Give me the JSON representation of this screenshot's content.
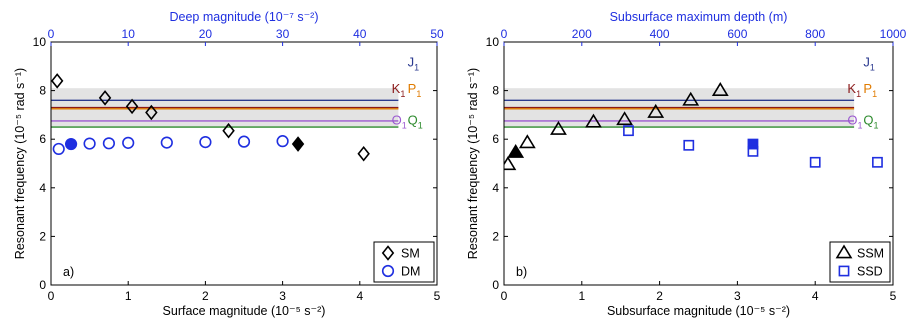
{
  "chart_data": [
    {
      "type": "scatter",
      "panel_label": "a)",
      "xlabel": "Surface magnitude (10⁻⁵ s⁻²)",
      "x2label": "Deep magnitude (10⁻⁷ s⁻²)",
      "ylabel": "Resonant frequency (10⁻⁵ rad s⁻¹)",
      "xlim": [
        0,
        5
      ],
      "x2lim": [
        0,
        50
      ],
      "ylim": [
        0,
        10
      ],
      "xticks": [
        "0",
        "1",
        "2",
        "3",
        "4",
        "5"
      ],
      "x2ticks": [
        "0",
        "10",
        "20",
        "30",
        "40",
        "50"
      ],
      "yticks": [
        "0",
        "2",
        "4",
        "6",
        "8",
        "10"
      ],
      "legend_position": "bottom-right",
      "shaded_band": [
        6.5,
        8.1
      ],
      "tidal_lines": [
        {
          "name": "J",
          "sub": "1",
          "y": 7.6,
          "color": "#2b3a8f"
        },
        {
          "name": "K",
          "sub": "1",
          "y": 7.3,
          "color": "#8b1a1a"
        },
        {
          "name": "P",
          "sub": "1",
          "y": 7.25,
          "color": "#e07b00"
        },
        {
          "name": "O",
          "sub": "1",
          "y": 6.75,
          "color": "#9b59d0"
        },
        {
          "name": "Q",
          "sub": "1",
          "y": 6.5,
          "color": "#2e8b2e"
        }
      ],
      "series": [
        {
          "name": "SM",
          "axis": "bottom",
          "marker": "diamond",
          "color": "#000000",
          "points": [
            {
              "x": 0.08,
              "y": 8.4,
              "filled": false
            },
            {
              "x": 0.7,
              "y": 7.7,
              "filled": false
            },
            {
              "x": 1.05,
              "y": 7.35,
              "filled": false
            },
            {
              "x": 1.3,
              "y": 7.1,
              "filled": false
            },
            {
              "x": 2.3,
              "y": 6.35,
              "filled": false
            },
            {
              "x": 3.2,
              "y": 5.8,
              "filled": true
            },
            {
              "x": 4.05,
              "y": 5.4,
              "filled": false
            }
          ]
        },
        {
          "name": "DM",
          "axis": "top",
          "marker": "circle",
          "color": "#1f2fe0",
          "points": [
            {
              "x": 1,
              "y": 5.6,
              "filled": false
            },
            {
              "x": 2.6,
              "y": 5.8,
              "filled": true
            },
            {
              "x": 5,
              "y": 5.82,
              "filled": false
            },
            {
              "x": 7.5,
              "y": 5.83,
              "filled": false
            },
            {
              "x": 10,
              "y": 5.85,
              "filled": false
            },
            {
              "x": 15,
              "y": 5.86,
              "filled": false
            },
            {
              "x": 20,
              "y": 5.88,
              "filled": false
            },
            {
              "x": 25,
              "y": 5.9,
              "filled": false
            },
            {
              "x": 30,
              "y": 5.92,
              "filled": false
            }
          ]
        }
      ]
    },
    {
      "type": "scatter",
      "panel_label": "b)",
      "xlabel": "Subsurface magnitude (10⁻⁵ s⁻²)",
      "x2label": "Subsurface maximum depth (m)",
      "ylabel": "Resonant frequency (10⁻⁵ rad s⁻¹)",
      "xlim": [
        0,
        5
      ],
      "x2lim": [
        0,
        1000
      ],
      "ylim": [
        0,
        10
      ],
      "xticks": [
        "0",
        "1",
        "2",
        "3",
        "4",
        "5"
      ],
      "x2ticks": [
        "0",
        "200",
        "400",
        "600",
        "800",
        "1000"
      ],
      "yticks": [
        "0",
        "2",
        "4",
        "6",
        "8",
        "10"
      ],
      "legend_position": "bottom-right",
      "shaded_band": [
        6.5,
        8.1
      ],
      "tidal_lines": [
        {
          "name": "J",
          "sub": "1",
          "y": 7.6,
          "color": "#2b3a8f"
        },
        {
          "name": "K",
          "sub": "1",
          "y": 7.3,
          "color": "#8b1a1a"
        },
        {
          "name": "P",
          "sub": "1",
          "y": 7.25,
          "color": "#e07b00"
        },
        {
          "name": "O",
          "sub": "1",
          "y": 6.75,
          "color": "#9b59d0"
        },
        {
          "name": "Q",
          "sub": "1",
          "y": 6.5,
          "color": "#2e8b2e"
        }
      ],
      "series": [
        {
          "name": "SSM",
          "axis": "bottom",
          "marker": "triangle",
          "color": "#000000",
          "points": [
            {
              "x": 0.05,
              "y": 4.95,
              "filled": false
            },
            {
              "x": 0.15,
              "y": 5.45,
              "filled": true
            },
            {
              "x": 0.3,
              "y": 5.85,
              "filled": false
            },
            {
              "x": 0.7,
              "y": 6.4,
              "filled": false
            },
            {
              "x": 1.15,
              "y": 6.7,
              "filled": false
            },
            {
              "x": 1.55,
              "y": 6.8,
              "filled": false
            },
            {
              "x": 1.95,
              "y": 7.1,
              "filled": false
            },
            {
              "x": 2.4,
              "y": 7.6,
              "filled": false
            },
            {
              "x": 2.78,
              "y": 8.0,
              "filled": false
            }
          ]
        },
        {
          "name": "SSD",
          "axis": "top",
          "marker": "square",
          "color": "#1f2fe0",
          "points": [
            {
              "x": 320,
              "y": 6.35,
              "filled": false
            },
            {
              "x": 475,
              "y": 5.75,
              "filled": false
            },
            {
              "x": 640,
              "y": 5.8,
              "filled": true
            },
            {
              "x": 640,
              "y": 5.5,
              "filled": false
            },
            {
              "x": 800,
              "y": 5.05,
              "filled": false
            },
            {
              "x": 960,
              "y": 5.05,
              "filled": false
            }
          ]
        }
      ]
    }
  ]
}
